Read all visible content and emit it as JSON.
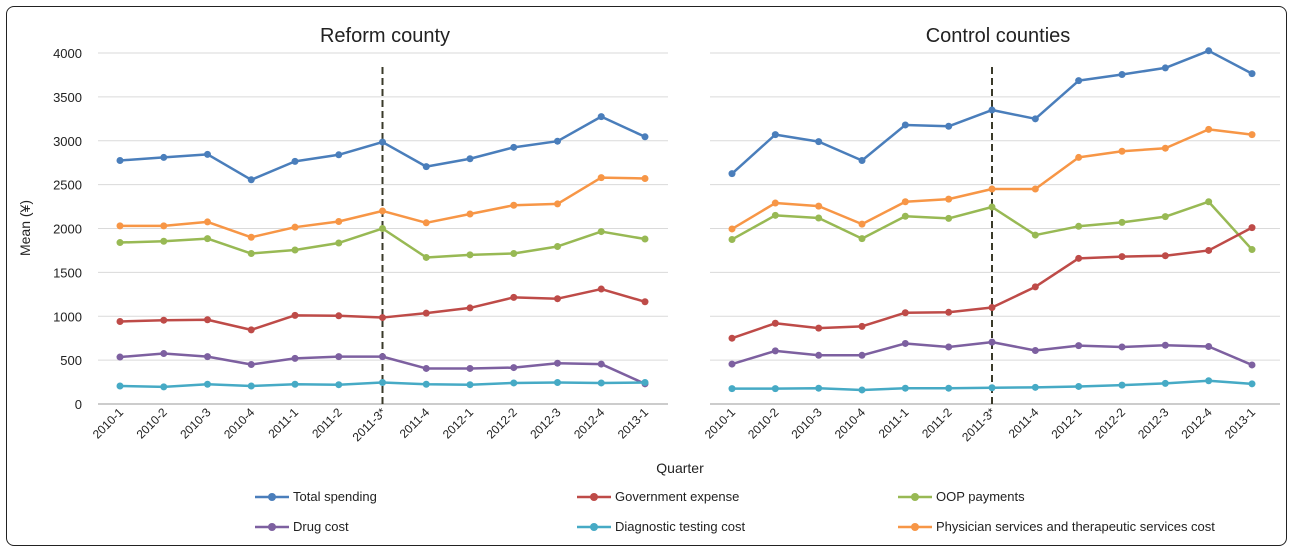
{
  "chart_data": {
    "type": "line",
    "ylabel": "Mean (¥)",
    "xlabel": "Quarter",
    "ylim": [
      0,
      4000
    ],
    "yticks": [
      0,
      500,
      1000,
      1500,
      2000,
      2500,
      3000,
      3500,
      4000
    ],
    "grid": "horizontal",
    "legend_position": "bottom",
    "intervention_marker": "2011-3*",
    "categories": [
      "2010-1",
      "2010-2",
      "2010-3",
      "2010-4",
      "2011-1",
      "2011-2",
      "2011-3*",
      "2011-4",
      "2012-1",
      "2012-2",
      "2012-3",
      "2012-4",
      "2013-1"
    ],
    "legend": [
      {
        "name": "Total spending",
        "color": "#4a7ebb"
      },
      {
        "name": "Government expense",
        "color": "#be4b48"
      },
      {
        "name": "OOP payments",
        "color": "#98b954"
      },
      {
        "name": "Drug cost",
        "color": "#7d60a0"
      },
      {
        "name": "Diagnostic testing cost",
        "color": "#46aac5"
      },
      {
        "name": "Physician services and therapeutic services cost",
        "color": "#f79646"
      }
    ],
    "panels": [
      {
        "title": "Reform county",
        "series": [
          {
            "name": "Total spending",
            "values": [
              2775,
              2810,
              2845,
              2555,
              2765,
              2840,
              2985,
              2705,
              2795,
              2925,
              2995,
              3275,
              3045
            ]
          },
          {
            "name": "Physician services and therapeutic services cost",
            "values": [
              2030,
              2030,
              2075,
              1900,
              2015,
              2080,
              2200,
              2065,
              2165,
              2265,
              2280,
              2580,
              2570
            ]
          },
          {
            "name": "OOP payments",
            "values": [
              1840,
              1855,
              1885,
              1715,
              1755,
              1835,
              2000,
              1670,
              1700,
              1715,
              1795,
              1965,
              1880
            ]
          },
          {
            "name": "Government expense",
            "values": [
              940,
              955,
              960,
              845,
              1010,
              1005,
              985,
              1035,
              1095,
              1215,
              1200,
              1310,
              1165
            ]
          },
          {
            "name": "Drug cost",
            "values": [
              535,
              575,
              540,
              450,
              520,
              540,
              540,
              405,
              405,
              415,
              465,
              455,
              230
            ]
          },
          {
            "name": "Diagnostic testing cost",
            "values": [
              205,
              195,
              225,
              205,
              225,
              220,
              245,
              225,
              220,
              240,
              245,
              240,
              245
            ]
          }
        ]
      },
      {
        "title": "Control counties",
        "series": [
          {
            "name": "Total spending",
            "values": [
              2625,
              3070,
              2990,
              2775,
              3180,
              3165,
              3350,
              3250,
              3685,
              3755,
              3830,
              4025,
              3765
            ]
          },
          {
            "name": "Physician services and therapeutic services cost",
            "values": [
              1995,
              2290,
              2255,
              2050,
              2305,
              2335,
              2450,
              2450,
              2810,
              2880,
              2915,
              3130,
              3070
            ]
          },
          {
            "name": "OOP payments",
            "values": [
              1875,
              2150,
              2120,
              1885,
              2140,
              2115,
              2245,
              1925,
              2025,
              2070,
              2135,
              2305,
              1760
            ]
          },
          {
            "name": "Government expense",
            "values": [
              750,
              920,
              865,
              885,
              1040,
              1045,
              1100,
              1335,
              1660,
              1680,
              1690,
              1750,
              2010
            ]
          },
          {
            "name": "Drug cost",
            "values": [
              455,
              605,
              555,
              555,
              690,
              650,
              705,
              610,
              665,
              650,
              670,
              655,
              445
            ]
          },
          {
            "name": "Diagnostic testing cost",
            "values": [
              175,
              175,
              180,
              160,
              180,
              180,
              185,
              190,
              200,
              215,
              235,
              265,
              230
            ]
          }
        ]
      }
    ]
  }
}
